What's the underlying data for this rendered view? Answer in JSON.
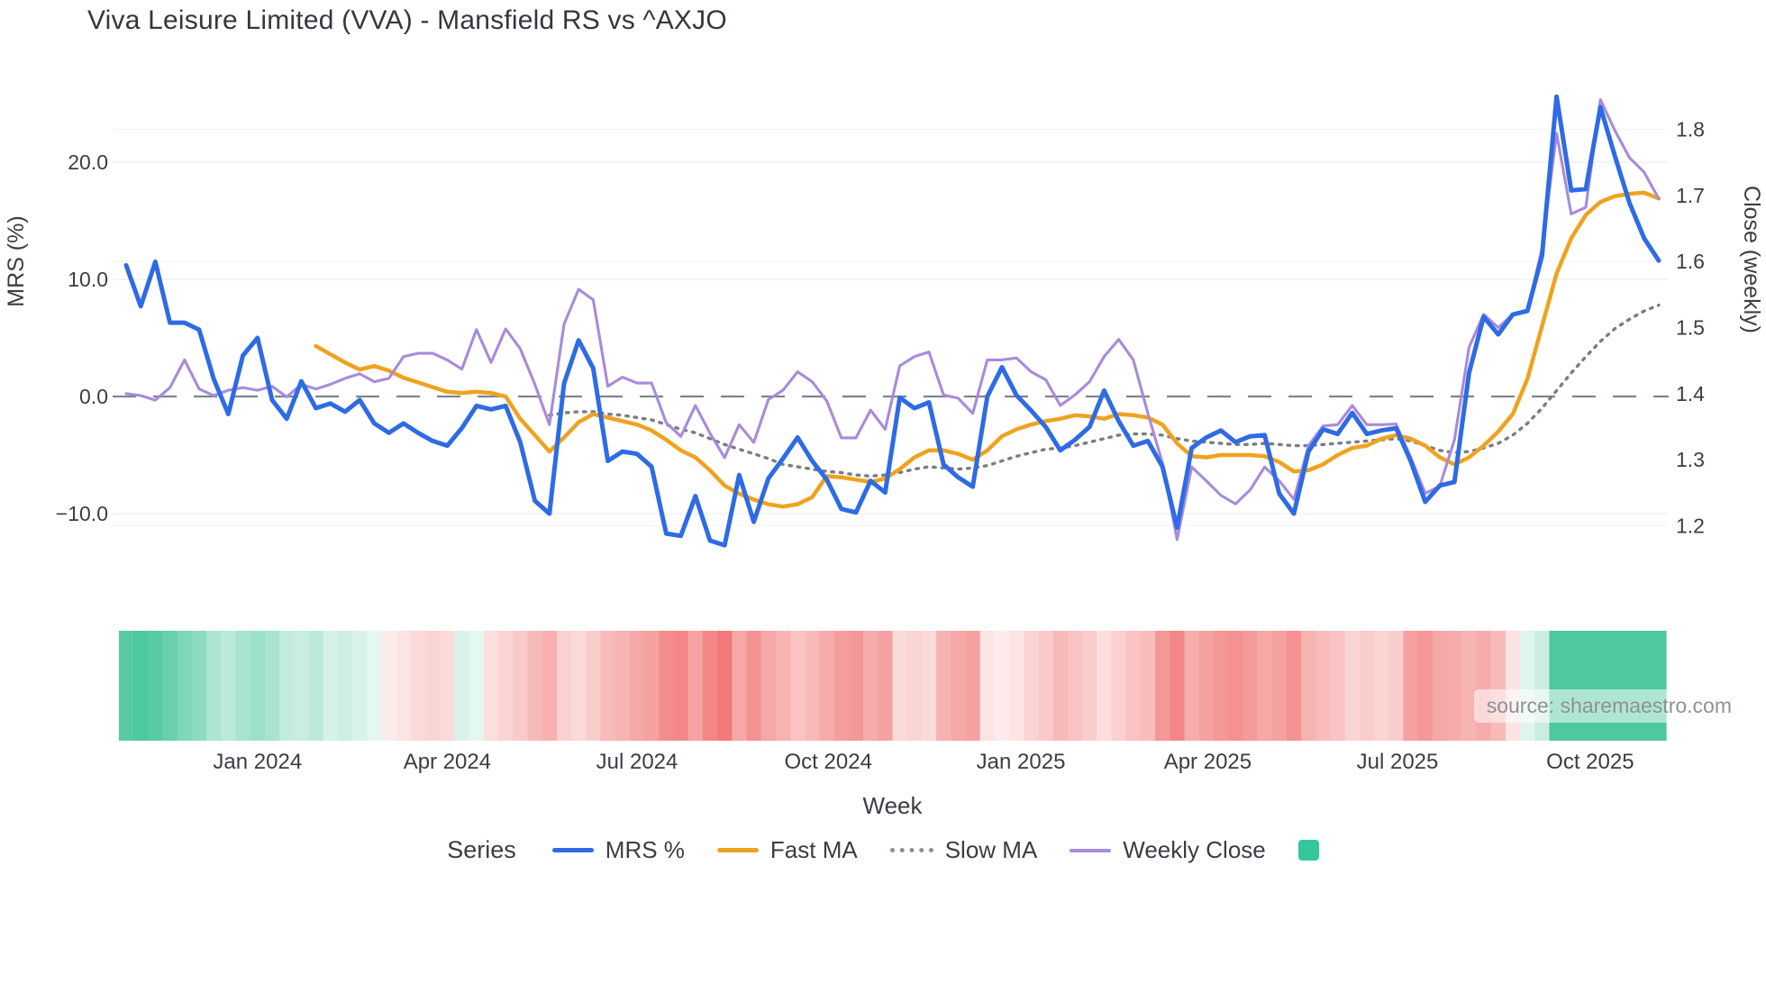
{
  "title": "Viva Leisure Limited (VVA) - Mansfield RS vs ^AXJO",
  "source": "source: sharemaestro.com",
  "colors": {
    "mrs": "#2e6be4",
    "fast_ma": "#eea320",
    "slow_ma": "#7a7d82",
    "weekly_close": "#a78bdb",
    "zero_line": "#7d8391",
    "gridline": "#eef0f5",
    "gridline_right": "#f4f5f8",
    "heat_positive": "#2fbe8c",
    "heat_negative": "#ee5858",
    "text": "#3a3d44"
  },
  "axes": {
    "left": {
      "title": "MRS (%)",
      "ticks": [
        {
          "label": "20.0",
          "v": 20
        },
        {
          "label": "10.0",
          "v": 10
        },
        {
          "label": "0.0",
          "v": 0
        },
        {
          "label": "−10.0",
          "v": -10
        }
      ]
    },
    "right": {
      "title": "Close (weekly)",
      "ticks": [
        {
          "label": "1.8",
          "v": 1.8
        },
        {
          "label": "1.7",
          "v": 1.7
        },
        {
          "label": "1.6",
          "v": 1.6
        },
        {
          "label": "1.5",
          "v": 1.5
        },
        {
          "label": "1.4",
          "v": 1.4
        },
        {
          "label": "1.3",
          "v": 1.3
        },
        {
          "label": "1.2",
          "v": 1.2
        }
      ]
    },
    "x": {
      "title": "Week",
      "ticks": [
        {
          "label": "Jan 2024",
          "week": 9.0
        },
        {
          "label": "Apr 2024",
          "week": 22.0
        },
        {
          "label": "Jul 2024",
          "week": 35.0
        },
        {
          "label": "Oct 2024",
          "week": 48.1
        },
        {
          "label": "Jan 2025",
          "week": 61.3
        },
        {
          "label": "Apr 2025",
          "week": 74.1
        },
        {
          "label": "Jul 2025",
          "week": 87.1
        },
        {
          "label": "Oct 2025",
          "week": 100.3
        }
      ]
    }
  },
  "legend": {
    "label": "Series",
    "items": [
      {
        "key": "mrs",
        "label": "MRS %",
        "swatch": "line",
        "color": "#2e6be4"
      },
      {
        "key": "fast-ma",
        "label": "Fast MA",
        "swatch": "line",
        "color": "#eea320"
      },
      {
        "key": "slow-ma",
        "label": "Slow MA",
        "swatch": "dotted",
        "color": "#8a8f96"
      },
      {
        "key": "weekly-close",
        "label": "Weekly Close",
        "swatch": "line-thin",
        "color": "#a78bdb"
      },
      {
        "key": "heat",
        "label": "",
        "swatch": "square",
        "color": "#35c79b"
      }
    ]
  },
  "chart_data": {
    "type": "line",
    "title": "Viva Leisure Limited (VVA) - Mansfield RS vs ^AXJO",
    "x_unit": "week",
    "x_start_date": "2023-10-30",
    "n_weeks": 106,
    "ylim_left": [
      -15,
      27
    ],
    "ylim_right": [
      1.14,
      1.87
    ],
    "zero_line_left": 0,
    "legend_position": "bottom",
    "grid": "faint-horizontal",
    "series": [
      {
        "name": "MRS %",
        "axis": "left",
        "style": "solid",
        "color": "#2e6be4",
        "values": [
          11.2,
          7.7,
          11.5,
          6.3,
          6.3,
          5.7,
          1.5,
          -1.5,
          3.5,
          5.0,
          -0.3,
          -1.9,
          1.3,
          -1.0,
          -0.6,
          -1.3,
          -0.3,
          -2.3,
          -3.1,
          -2.3,
          -3.1,
          -3.8,
          -4.2,
          -2.7,
          -0.8,
          -1.1,
          -0.8,
          -3.9,
          -8.9,
          -10.0,
          1.1,
          4.8,
          2.4,
          -5.5,
          -4.7,
          -4.9,
          -6.0,
          -11.7,
          -11.9,
          -8.5,
          -12.3,
          -12.7,
          -6.7,
          -10.7,
          -7.0,
          -5.3,
          -3.5,
          -5.5,
          -7.1,
          -9.6,
          -9.9,
          -7.2,
          -8.2,
          -0.1,
          -1.0,
          -0.5,
          -5.8,
          -6.9,
          -7.7,
          0.0,
          2.5,
          0.1,
          -1.2,
          -2.6,
          -4.6,
          -3.7,
          -2.6,
          0.5,
          -2.1,
          -4.2,
          -3.8,
          -6.0,
          -11.2,
          -4.4,
          -3.5,
          -2.9,
          -3.9,
          -3.4,
          -3.3,
          -8.3,
          -10.0,
          -4.7,
          -2.8,
          -3.2,
          -1.4,
          -3.2,
          -2.9,
          -2.7,
          -5.5,
          -9.0,
          -7.6,
          -7.3,
          2.0,
          6.8,
          5.3,
          7.0,
          7.3,
          12.0,
          25.6,
          17.6,
          17.7,
          24.7,
          20.5,
          16.5,
          13.5,
          11.6
        ]
      },
      {
        "name": "Fast MA",
        "axis": "left",
        "style": "solid",
        "color": "#eea320",
        "values": [
          null,
          null,
          null,
          null,
          null,
          null,
          null,
          null,
          null,
          null,
          null,
          null,
          null,
          4.3,
          3.6,
          2.9,
          2.3,
          2.6,
          2.2,
          1.6,
          1.2,
          0.8,
          0.4,
          0.3,
          0.4,
          0.3,
          0.0,
          -1.9,
          -3.3,
          -4.7,
          -3.5,
          -2.2,
          -1.5,
          -1.8,
          -2.1,
          -2.4,
          -2.9,
          -3.7,
          -4.6,
          -5.2,
          -6.3,
          -7.6,
          -8.3,
          -8.8,
          -9.2,
          -9.4,
          -9.2,
          -8.6,
          -6.8,
          -6.9,
          -7.1,
          -7.3,
          -7.0,
          -6.2,
          -5.2,
          -4.6,
          -4.6,
          -4.9,
          -5.4,
          -4.6,
          -3.4,
          -2.8,
          -2.4,
          -2.1,
          -1.9,
          -1.6,
          -1.7,
          -1.9,
          -1.5,
          -1.6,
          -1.8,
          -2.4,
          -4.0,
          -5.1,
          -5.2,
          -5.0,
          -5.0,
          -5.0,
          -5.1,
          -5.6,
          -6.4,
          -6.3,
          -5.8,
          -5.0,
          -4.4,
          -4.2,
          -3.6,
          -3.3,
          -3.6,
          -4.2,
          -5.2,
          -5.8,
          -5.2,
          -4.2,
          -3.0,
          -1.5,
          1.5,
          6.0,
          10.5,
          13.5,
          15.5,
          16.6,
          17.1,
          17.3,
          17.4,
          16.9
        ]
      },
      {
        "name": "Slow MA",
        "axis": "left",
        "style": "dotted",
        "color": "#7a7d82",
        "values": [
          null,
          null,
          null,
          null,
          null,
          null,
          null,
          null,
          null,
          null,
          null,
          null,
          null,
          null,
          null,
          null,
          null,
          null,
          null,
          null,
          null,
          null,
          null,
          null,
          null,
          null,
          null,
          null,
          null,
          -1.6,
          -1.4,
          -1.3,
          -1.3,
          -1.5,
          -1.6,
          -1.8,
          -2.0,
          -2.4,
          -2.8,
          -3.1,
          -3.6,
          -4.1,
          -4.5,
          -4.9,
          -5.3,
          -5.8,
          -6.0,
          -6.2,
          -6.4,
          -6.5,
          -6.7,
          -6.8,
          -6.7,
          -6.5,
          -6.2,
          -6.0,
          -6.1,
          -6.2,
          -6.1,
          -5.9,
          -5.5,
          -5.1,
          -4.8,
          -4.5,
          -4.4,
          -4.2,
          -3.9,
          -3.6,
          -3.3,
          -3.2,
          -3.2,
          -3.3,
          -3.6,
          -3.8,
          -3.9,
          -4.0,
          -4.1,
          -4.1,
          -4.0,
          -4.1,
          -4.2,
          -4.2,
          -4.1,
          -4.0,
          -3.9,
          -3.8,
          -3.7,
          -3.6,
          -3.8,
          -4.2,
          -4.6,
          -4.8,
          -4.7,
          -4.4,
          -4.0,
          -3.3,
          -2.3,
          -1.0,
          0.5,
          2.0,
          3.4,
          4.7,
          5.8,
          6.6,
          7.3,
          7.8
        ]
      },
      {
        "name": "Weekly Close",
        "axis": "right",
        "style": "solid",
        "color": "#a78bdb",
        "values": [
          1.4,
          1.397,
          1.39,
          1.409,
          1.451,
          1.407,
          1.397,
          1.405,
          1.409,
          1.405,
          1.411,
          1.395,
          1.414,
          1.407,
          1.414,
          1.423,
          1.43,
          1.418,
          1.423,
          1.456,
          1.461,
          1.461,
          1.451,
          1.437,
          1.497,
          1.447,
          1.498,
          1.468,
          1.414,
          1.353,
          1.505,
          1.558,
          1.542,
          1.411,
          1.425,
          1.416,
          1.416,
          1.356,
          1.335,
          1.382,
          1.34,
          1.303,
          1.353,
          1.326,
          1.391,
          1.405,
          1.433,
          1.418,
          1.389,
          1.333,
          1.333,
          1.375,
          1.346,
          1.442,
          1.456,
          1.463,
          1.398,
          1.393,
          1.37,
          1.451,
          1.451,
          1.454,
          1.433,
          1.421,
          1.382,
          1.398,
          1.418,
          1.456,
          1.482,
          1.451,
          1.37,
          1.295,
          1.179,
          1.289,
          1.268,
          1.246,
          1.233,
          1.254,
          1.289,
          1.268,
          1.24,
          1.321,
          1.351,
          1.353,
          1.382,
          1.353,
          1.353,
          1.354,
          1.304,
          1.249,
          1.26,
          1.33,
          1.47,
          1.52,
          1.5,
          1.52,
          1.525,
          1.62,
          1.794,
          1.672,
          1.682,
          1.845,
          1.798,
          1.757,
          1.735,
          1.695
        ]
      }
    ],
    "heat_strip": {
      "description": "weekly heat bar under chart, green positive / red negative intensity",
      "values": [
        0.8,
        0.85,
        0.8,
        0.72,
        0.62,
        0.56,
        0.4,
        0.32,
        0.42,
        0.48,
        0.42,
        0.3,
        0.26,
        0.32,
        0.2,
        0.24,
        0.18,
        0.12,
        -0.12,
        -0.16,
        -0.22,
        -0.26,
        -0.22,
        0.18,
        0.12,
        -0.2,
        -0.26,
        -0.32,
        -0.42,
        -0.48,
        -0.28,
        -0.22,
        -0.3,
        -0.42,
        -0.46,
        -0.52,
        -0.56,
        -0.68,
        -0.72,
        -0.55,
        -0.72,
        -0.8,
        -0.52,
        -0.66,
        -0.52,
        -0.46,
        -0.36,
        -0.42,
        -0.5,
        -0.58,
        -0.62,
        -0.5,
        -0.56,
        -0.22,
        -0.26,
        -0.22,
        -0.46,
        -0.52,
        -0.56,
        -0.16,
        -0.12,
        -0.16,
        -0.26,
        -0.32,
        -0.42,
        -0.36,
        -0.3,
        -0.2,
        -0.28,
        -0.36,
        -0.4,
        -0.62,
        -0.72,
        -0.5,
        -0.56,
        -0.62,
        -0.66,
        -0.6,
        -0.52,
        -0.56,
        -0.66,
        -0.46,
        -0.4,
        -0.36,
        -0.26,
        -0.3,
        -0.26,
        -0.3,
        -0.56,
        -0.62,
        -0.52,
        -0.5,
        -0.46,
        -0.5,
        -0.42,
        -0.16,
        0.16,
        0.26,
        0.85,
        0.85,
        0.85,
        0.85,
        0.85,
        0.85,
        0.85,
        0.85
      ]
    }
  }
}
